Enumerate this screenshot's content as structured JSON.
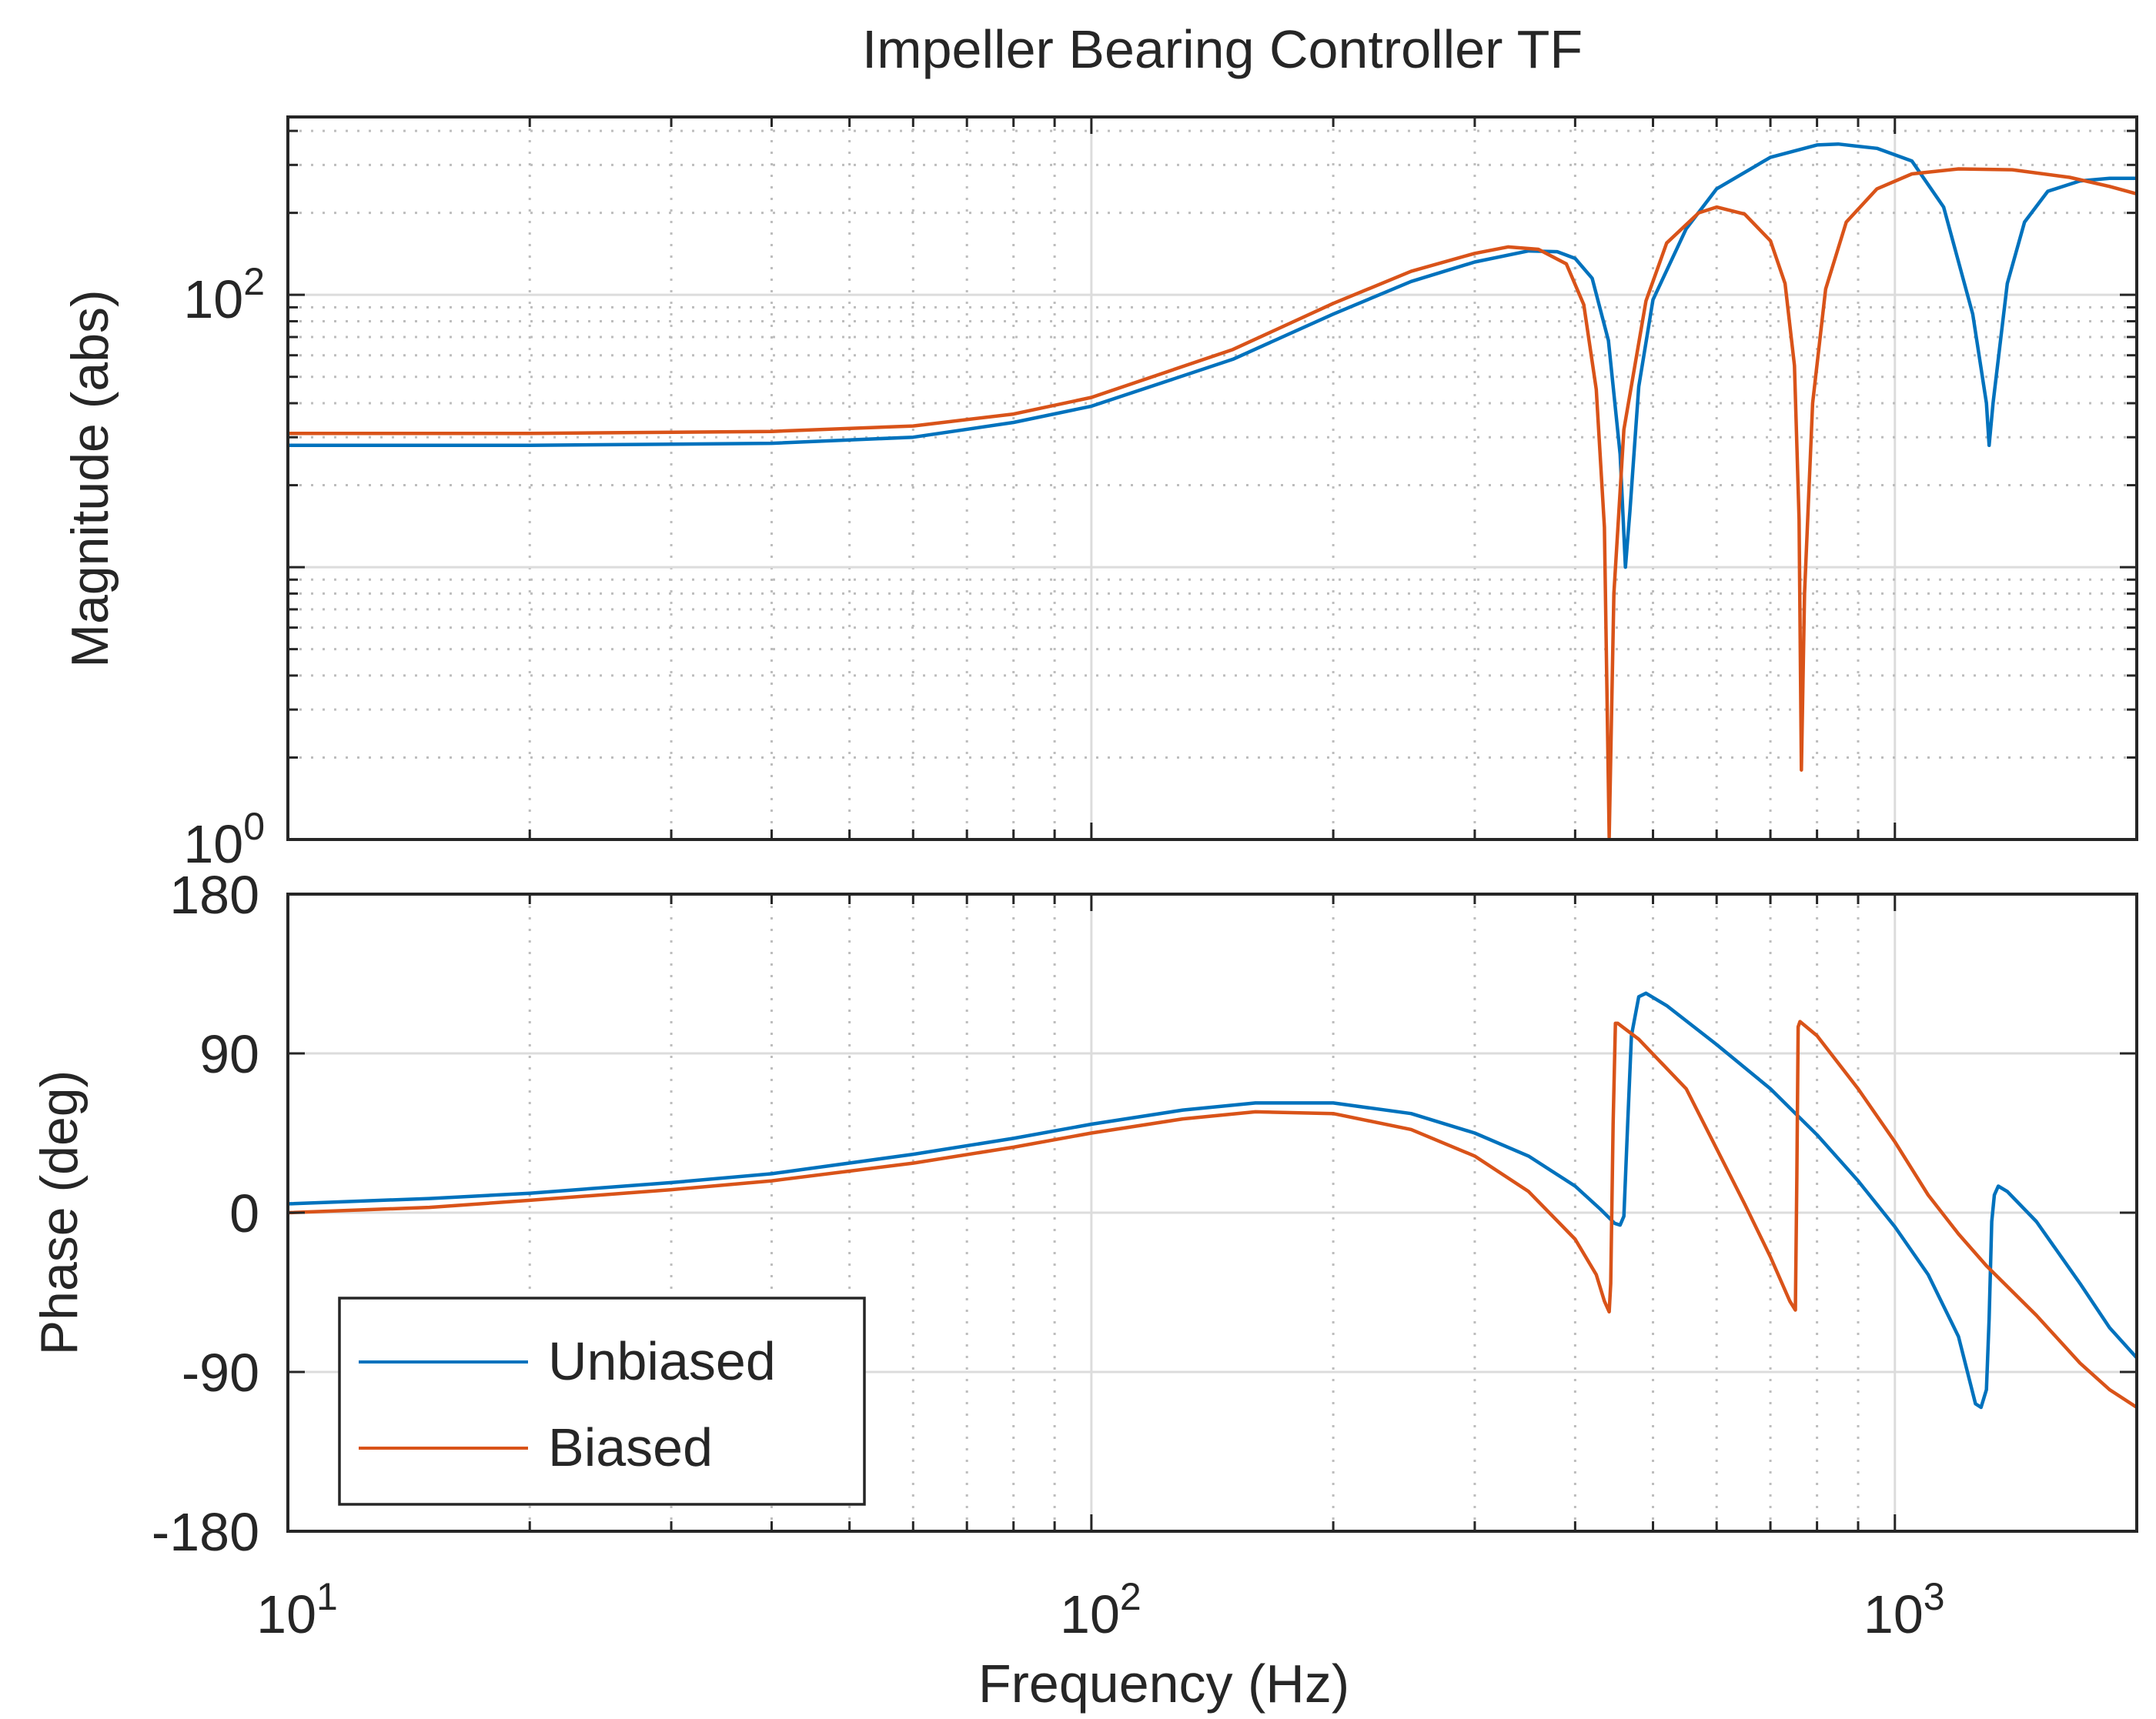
{
  "chart_data": {
    "type": "line",
    "title": "Impeller Bearing Controller TF",
    "xlabel": "Frequency  (Hz)",
    "xscale": "log",
    "xlim": [
      10,
      2000
    ],
    "x_ticks": [
      {
        "base": "10",
        "exp": "1"
      },
      {
        "base": "10",
        "exp": "2"
      },
      {
        "base": "10",
        "exp": "3"
      }
    ],
    "colors": {
      "unbiased": "#0072BD",
      "biased": "#D95319",
      "grid": "#bdbdbd",
      "axes": "#262626"
    },
    "legend": {
      "position": "bottom-left",
      "entries": [
        "Unbiased",
        "Biased"
      ]
    },
    "magnitude": {
      "ylabel": "Magnitude (abs)",
      "yscale": "log",
      "ylim": [
        1,
        450
      ],
      "y_ticks": [
        {
          "base": "10",
          "exp": "0"
        },
        {
          "base": "10",
          "exp": "2"
        }
      ],
      "series": [
        {
          "name": "Unbiased",
          "points": [
            [
              10,
              28
            ],
            [
              20,
              28
            ],
            [
              40,
              28.5
            ],
            [
              60,
              30
            ],
            [
              80,
              34
            ],
            [
              100,
              39
            ],
            [
              150,
              58
            ],
            [
              200,
              85
            ],
            [
              250,
              112
            ],
            [
              300,
              132
            ],
            [
              350,
              145
            ],
            [
              380,
              144
            ],
            [
              400,
              136
            ],
            [
              420,
              115
            ],
            [
              440,
              68
            ],
            [
              455,
              26
            ],
            [
              462,
              10
            ],
            [
              468,
              16
            ],
            [
              480,
              46
            ],
            [
              500,
              96
            ],
            [
              550,
              175
            ],
            [
              600,
              245
            ],
            [
              700,
              320
            ],
            [
              800,
              355
            ],
            [
              850,
              358
            ],
            [
              950,
              345
            ],
            [
              1050,
              310
            ],
            [
              1150,
              210
            ],
            [
              1250,
              85
            ],
            [
              1300,
              40
            ],
            [
              1310,
              28
            ],
            [
              1325,
              40
            ],
            [
              1380,
              110
            ],
            [
              1450,
              185
            ],
            [
              1550,
              240
            ],
            [
              1700,
              262
            ],
            [
              1850,
              268
            ],
            [
              2000,
              268
            ]
          ]
        },
        {
          "name": "Biased",
          "points": [
            [
              10,
              31
            ],
            [
              20,
              31
            ],
            [
              40,
              31.5
            ],
            [
              60,
              33
            ],
            [
              80,
              36.5
            ],
            [
              100,
              42
            ],
            [
              150,
              63
            ],
            [
              200,
              93
            ],
            [
              250,
              122
            ],
            [
              300,
              142
            ],
            [
              330,
              150
            ],
            [
              360,
              147
            ],
            [
              390,
              130
            ],
            [
              410,
              92
            ],
            [
              425,
              45
            ],
            [
              435,
              14
            ],
            [
              441,
              1.02
            ],
            [
              447,
              8
            ],
            [
              460,
              32
            ],
            [
              490,
              95
            ],
            [
              520,
              155
            ],
            [
              570,
              200
            ],
            [
              600,
              210
            ],
            [
              650,
              198
            ],
            [
              700,
              158
            ],
            [
              730,
              110
            ],
            [
              750,
              55
            ],
            [
              760,
              15
            ],
            [
              765,
              1.8
            ],
            [
              772,
              8
            ],
            [
              790,
              40
            ],
            [
              820,
              105
            ],
            [
              870,
              185
            ],
            [
              950,
              245
            ],
            [
              1050,
              278
            ],
            [
              1200,
              290
            ],
            [
              1400,
              288
            ],
            [
              1650,
              270
            ],
            [
              1850,
              250
            ],
            [
              2000,
              235
            ]
          ]
        }
      ]
    },
    "phase": {
      "ylabel": "Phase (deg)",
      "ylim": [
        -180,
        180
      ],
      "y_ticks": [
        180,
        90,
        0,
        -90,
        -180
      ],
      "series": [
        {
          "name": "Unbiased",
          "points": [
            [
              10,
              5
            ],
            [
              15,
              8
            ],
            [
              20,
              11
            ],
            [
              30,
              17
            ],
            [
              40,
              22
            ],
            [
              60,
              33
            ],
            [
              80,
              42
            ],
            [
              100,
              50
            ],
            [
              130,
              58
            ],
            [
              160,
              62
            ],
            [
              200,
              62
            ],
            [
              250,
              56
            ],
            [
              300,
              45
            ],
            [
              350,
              32
            ],
            [
              400,
              15
            ],
            [
              430,
              2
            ],
            [
              448,
              -6
            ],
            [
              455,
              -7
            ],
            [
              460,
              -2
            ],
            [
              465,
              50
            ],
            [
              470,
              100
            ],
            [
              480,
              122
            ],
            [
              490,
              124
            ],
            [
              520,
              117
            ],
            [
              600,
              95
            ],
            [
              700,
              70
            ],
            [
              800,
              44
            ],
            [
              900,
              18
            ],
            [
              1000,
              -8
            ],
            [
              1100,
              -35
            ],
            [
              1200,
              -70
            ],
            [
              1260,
              -108
            ],
            [
              1280,
              -110
            ],
            [
              1300,
              -100
            ],
            [
              1310,
              -60
            ],
            [
              1320,
              -5
            ],
            [
              1330,
              10
            ],
            [
              1345,
              15
            ],
            [
              1380,
              12
            ],
            [
              1500,
              -5
            ],
            [
              1700,
              -40
            ],
            [
              1850,
              -65
            ],
            [
              2000,
              -82
            ]
          ]
        },
        {
          "name": "Biased",
          "points": [
            [
              10,
              0
            ],
            [
              15,
              3
            ],
            [
              20,
              7
            ],
            [
              30,
              13
            ],
            [
              40,
              18
            ],
            [
              60,
              28
            ],
            [
              80,
              37
            ],
            [
              100,
              45
            ],
            [
              130,
              53
            ],
            [
              160,
              57
            ],
            [
              200,
              56
            ],
            [
              250,
              47
            ],
            [
              300,
              32
            ],
            [
              350,
              12
            ],
            [
              400,
              -15
            ],
            [
              425,
              -35
            ],
            [
              435,
              -50
            ],
            [
              441,
              -56
            ],
            [
              443,
              -40
            ],
            [
              446,
              50
            ],
            [
              449,
              107
            ],
            [
              452,
              107
            ],
            [
              480,
              98
            ],
            [
              550,
              70
            ],
            [
              650,
              5
            ],
            [
              700,
              -25
            ],
            [
              740,
              -50
            ],
            [
              752,
              -55
            ],
            [
              755,
              20
            ],
            [
              758,
              105
            ],
            [
              762,
              108
            ],
            [
              800,
              100
            ],
            [
              900,
              70
            ],
            [
              1000,
              40
            ],
            [
              1100,
              10
            ],
            [
              1200,
              -12
            ],
            [
              1300,
              -30
            ],
            [
              1500,
              -58
            ],
            [
              1700,
              -85
            ],
            [
              1850,
              -100
            ],
            [
              2000,
              -110
            ]
          ]
        }
      ]
    }
  }
}
